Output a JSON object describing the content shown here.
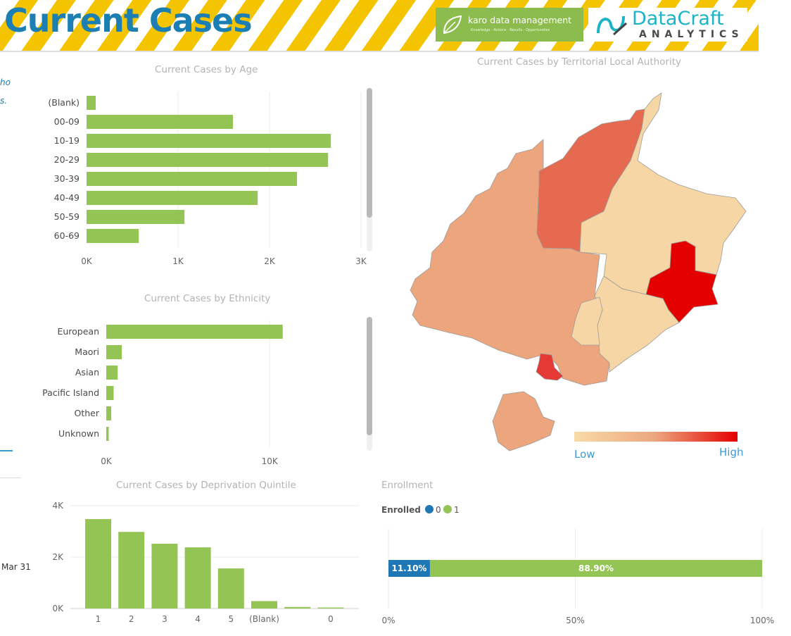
{
  "header": {
    "title": "Current Cases",
    "karo_logo": "karo data management",
    "karo_tagline": "Knowledge · Actions · Results · Opportunities",
    "datacraft_logo": "DataCraft",
    "datacraft_sub": "ANALYTICS"
  },
  "left_fragments": {
    "line1": "ho",
    "line2": "s.",
    "date": "Mar 31"
  },
  "chart_data": [
    {
      "type": "bar",
      "orientation": "horizontal",
      "title": "Current Cases by Age",
      "categories": [
        "(Blank)",
        "00-09",
        "10-19",
        "20-29",
        "30-39",
        "40-49",
        "50-59",
        "60-69"
      ],
      "values": [
        100,
        1600,
        2670,
        2640,
        2300,
        1870,
        1070,
        570
      ],
      "xlim": [
        0,
        3000
      ],
      "x_ticks": [
        "0K",
        "1K",
        "2K",
        "3K"
      ],
      "color": "#93c454"
    },
    {
      "type": "bar",
      "orientation": "horizontal",
      "title": "Current Cases by Ethnicity",
      "categories": [
        "European",
        "Maori",
        "Asian",
        "Pacific Island",
        "Other",
        "Unknown"
      ],
      "values": [
        10800,
        950,
        700,
        450,
        300,
        150
      ],
      "xlim": [
        0,
        14000
      ],
      "x_ticks": [
        "0K",
        "10K"
      ],
      "color": "#93c454"
    },
    {
      "type": "bar",
      "title": "Current Cases by Deprivation Quintile",
      "categories": [
        "1",
        "2",
        "3",
        "4",
        "5",
        "(Blank)",
        "",
        "0"
      ],
      "values": [
        3480,
        2980,
        2520,
        2380,
        1560,
        290,
        60,
        40
      ],
      "ylim": [
        0,
        4000
      ],
      "y_ticks": [
        "0K",
        "2K",
        "4K"
      ],
      "color": "#93c454"
    },
    {
      "type": "bar",
      "stacked": true,
      "orientation": "horizontal",
      "title": "Enrollment",
      "legend_title": "Enrolled",
      "series": [
        {
          "name": "0",
          "value": 11.1,
          "label": "11.10%",
          "color": "#1f77b4"
        },
        {
          "name": "1",
          "value": 88.9,
          "label": "88.90%",
          "color": "#93c454"
        }
      ],
      "x_ticks": [
        "0%",
        "50%",
        "100%"
      ]
    }
  ],
  "map": {
    "title": "Current Cases by Territorial Local Authority",
    "legend_low": "Low",
    "legend_high": "High",
    "colors": {
      "low": "#f7dca8",
      "mid": "#eca57d",
      "high": "#e50000"
    }
  }
}
